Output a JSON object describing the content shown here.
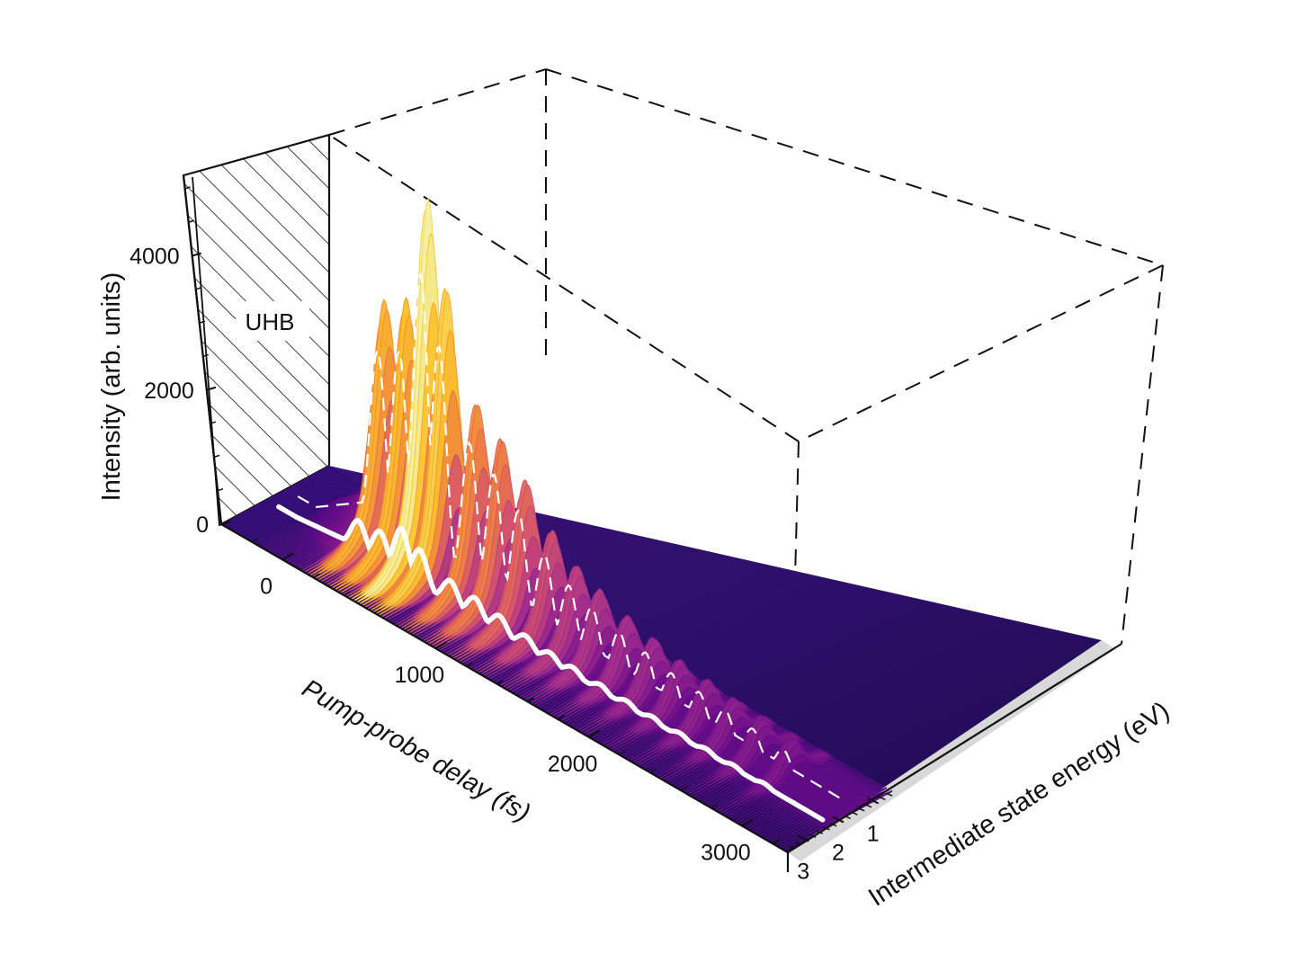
{
  "chart_data": {
    "type": "surface-3d",
    "x_axis": {
      "label": "Pump-probe delay (fs)",
      "ticks": [
        0,
        1000,
        2000,
        3000
      ],
      "range": [
        -400,
        3300
      ]
    },
    "y_axis": {
      "label": "Intermediate state energy (eV)",
      "ticks": [
        1,
        2,
        3
      ],
      "range": [
        0.5,
        3.6
      ]
    },
    "z_axis": {
      "label": "Intensity (arb. units)",
      "ticks": [
        0,
        2000,
        4000
      ],
      "range": [
        0,
        5200
      ]
    },
    "region_annotation": {
      "label": "UHB"
    },
    "peak_energy_eV": 1.55,
    "peaks": [
      {
        "delay_fs": 200,
        "intensity": 3400
      },
      {
        "delay_fs": 340,
        "intensity": 3600
      },
      {
        "delay_fs": 480,
        "intensity": 5200
      },
      {
        "delay_fs": 600,
        "intensity": 4100
      },
      {
        "delay_fs": 800,
        "intensity": 2700
      },
      {
        "delay_fs": 960,
        "intensity": 2400
      },
      {
        "delay_fs": 1120,
        "intensity": 2000
      },
      {
        "delay_fs": 1290,
        "intensity": 1500
      },
      {
        "delay_fs": 1450,
        "intensity": 1200
      },
      {
        "delay_fs": 1600,
        "intensity": 1050
      },
      {
        "delay_fs": 1780,
        "intensity": 900
      },
      {
        "delay_fs": 1950,
        "intensity": 800
      },
      {
        "delay_fs": 2120,
        "intensity": 700
      },
      {
        "delay_fs": 2300,
        "intensity": 650
      },
      {
        "delay_fs": 2470,
        "intensity": 600
      },
      {
        "delay_fs": 2650,
        "intensity": 550
      },
      {
        "delay_fs": 2850,
        "intensity": 500
      }
    ],
    "cut_lines": [
      {
        "name": "fixed energy 1.55 eV",
        "style": "dashed"
      },
      {
        "name": "fixed energy 2.3 eV",
        "style": "solid"
      }
    ],
    "colormap": [
      "#0d0887",
      "#3b0a77",
      "#6b0d8a",
      "#a42f8c",
      "#d5536a",
      "#f28a3a",
      "#fcc32b",
      "#f4f0a0"
    ],
    "grid": false
  }
}
